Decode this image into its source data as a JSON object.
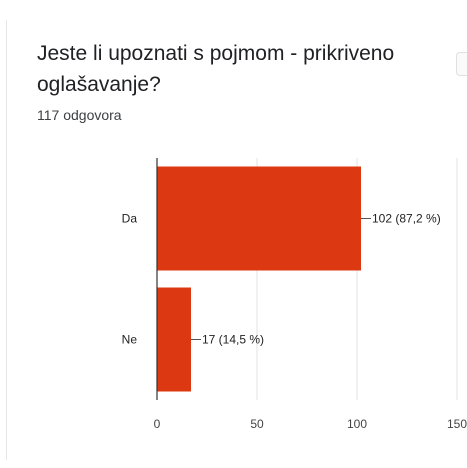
{
  "question": {
    "title": "Jeste li upoznati s pojmom - prikriveno oglašavanje?",
    "response_count": "117 odgovora"
  },
  "chart_data": {
    "type": "bar",
    "orientation": "horizontal",
    "title": "Jeste li upoznati s pojmom - prikriveno oglašavanje?",
    "categories": [
      "Da",
      "Ne"
    ],
    "values": [
      102,
      17
    ],
    "data_labels": [
      "102 (87,2 %)",
      "17 (14,5 %)"
    ],
    "xlim": [
      0,
      150
    ],
    "xticks": [
      0,
      50,
      100,
      150
    ],
    "xtick_labels": [
      "0",
      "50",
      "100",
      "150"
    ],
    "grid": true,
    "bar_color": "#dc3912",
    "legend": "none"
  }
}
